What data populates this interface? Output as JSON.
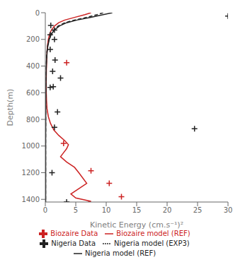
{
  "chart_data": {
    "type": "line",
    "xlabel": "Kinetic Energy (cm.s⁻¹)²",
    "ylabel": "Depth(m)",
    "xlim": [
      0,
      30
    ],
    "ylim": [
      1420,
      0
    ],
    "xticks": [
      0,
      5,
      10,
      15,
      20,
      25,
      30
    ],
    "yticks": [
      0,
      200,
      400,
      600,
      800,
      1000,
      1200,
      1400
    ],
    "grid": false,
    "legend": "bottom",
    "series": [
      {
        "name": "Biozaire model (REF)",
        "type": "line",
        "color": "#cc2222",
        "line_style": "solid",
        "x": [
          7.5,
          6.5,
          4.8,
          3.2,
          2.2,
          1.5,
          1.0,
          0.7,
          0.5,
          0.35,
          0.28,
          0.22,
          0.18,
          0.16,
          0.15,
          0.16,
          0.2,
          0.28,
          0.5,
          0.85,
          1.4,
          2.2,
          3.2,
          3.8,
          3.5,
          3.0,
          2.5,
          3.5,
          4.8,
          5.5,
          6.8,
          5.5,
          4.2,
          5.0,
          7.5,
          7.0
        ],
        "values": [
          0,
          15,
          35,
          55,
          75,
          100,
          130,
          160,
          200,
          250,
          300,
          360,
          420,
          480,
          540,
          600,
          660,
          720,
          780,
          830,
          880,
          920,
          960,
          990,
          1020,
          1050,
          1080,
          1120,
          1160,
          1200,
          1280,
          1320,
          1360,
          1390,
          1415,
          1420
        ]
      },
      {
        "name": "Biozaire Data",
        "type": "scatter",
        "color": "#cc2222",
        "marker": "plus",
        "x": [
          3.5,
          3.0,
          7.5,
          10.5,
          12.5
        ],
        "values": [
          375,
          980,
          1185,
          1280,
          1380
        ]
      },
      {
        "name": "Nigeria model (REF)",
        "type": "line",
        "color": "#222222",
        "line_style": "solid",
        "x": [
          11.0,
          9.5,
          7.5,
          5.2,
          3.5,
          2.3,
          1.5,
          1.0,
          0.65,
          0.42,
          0.28,
          0.2,
          0.15,
          0.12,
          0.1,
          0.09,
          0.08,
          0.08,
          0.07,
          0.07,
          0.07,
          0.06,
          0.06,
          0.06,
          0.06,
          0.06,
          0.06,
          0.06,
          0.06,
          0.06
        ],
        "values": [
          0,
          15,
          35,
          55,
          75,
          100,
          130,
          160,
          200,
          250,
          300,
          360,
          420,
          480,
          540,
          600,
          660,
          720,
          780,
          830,
          880,
          920,
          960,
          990,
          1050,
          1100,
          1150,
          1200,
          1300,
          1420
        ]
      },
      {
        "name": "Nigeria model (EXP3)",
        "type": "line",
        "color": "#222222",
        "line_style": "dashed",
        "x": [
          9.5,
          8.5,
          6.8,
          4.8,
          3.2,
          2.1,
          1.4,
          0.9,
          0.6,
          0.38,
          0.25,
          0.18,
          0.13,
          0.11,
          0.09,
          0.08,
          0.07,
          0.07,
          0.06,
          0.06,
          0.06,
          0.06,
          0.05,
          0.05,
          0.05,
          0.05,
          0.05,
          0.05,
          0.05,
          0.05
        ],
        "values": [
          0,
          15,
          35,
          55,
          75,
          100,
          130,
          160,
          200,
          250,
          300,
          360,
          420,
          480,
          540,
          600,
          660,
          720,
          780,
          830,
          880,
          920,
          960,
          990,
          1050,
          1100,
          1150,
          1200,
          1300,
          1420
        ]
      },
      {
        "name": "Nigeria Data",
        "type": "scatter",
        "color": "#222222",
        "marker": "plus",
        "x": [
          0.9,
          1.5,
          0.8,
          1.5,
          0.8,
          1.6,
          1.2,
          2.5,
          1.3,
          0.8,
          2.0,
          1.5,
          24.5,
          1.1,
          3.5,
          30.0
        ],
        "values": [
          95,
          130,
          165,
          200,
          275,
          355,
          440,
          490,
          555,
          560,
          745,
          860,
          870,
          1200,
          1420,
          25
        ]
      }
    ]
  }
}
